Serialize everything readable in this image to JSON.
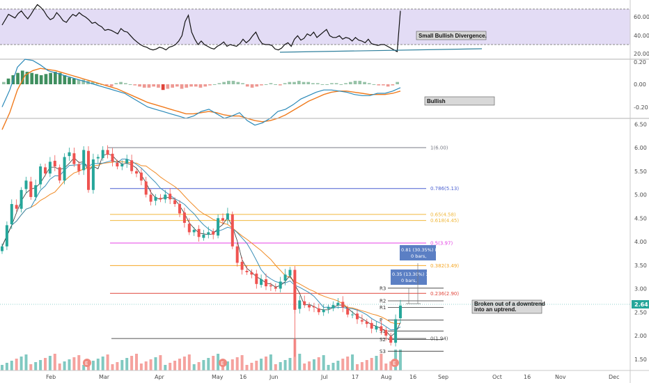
{
  "chart_data": [
    {
      "type": "line",
      "panel": "rsi",
      "yaxis_ticks": [
        "60.00",
        "40.00",
        "20.00"
      ],
      "overbought_level": 70,
      "oversold_level": 30,
      "values": [
        52,
        58,
        64,
        62,
        60,
        65,
        68,
        63,
        59,
        64,
        70,
        75,
        72,
        68,
        62,
        58,
        60,
        66,
        62,
        57,
        55,
        60,
        64,
        62,
        66,
        63,
        61,
        58,
        54,
        55,
        52,
        50,
        46,
        47,
        46,
        44,
        42,
        48,
        45,
        44,
        40,
        36,
        33,
        30,
        28,
        27,
        25,
        24,
        25,
        27,
        26,
        24,
        27,
        28,
        30,
        34,
        40,
        56,
        63,
        44,
        36,
        30,
        34,
        30,
        28,
        26,
        25,
        28,
        30,
        33,
        28,
        30,
        29,
        28,
        31,
        36,
        32,
        35,
        40,
        44,
        36,
        31,
        30,
        30,
        29,
        25,
        24,
        26,
        30,
        32,
        28,
        36,
        40,
        35,
        37,
        42,
        40,
        44,
        38,
        41,
        44,
        47,
        40,
        38,
        38,
        40,
        36,
        38,
        37,
        34,
        38,
        35,
        34,
        32,
        36,
        31,
        30,
        29,
        30,
        30,
        28,
        26,
        24,
        22,
        68
      ],
      "annotation": "Small Bullish Divergence.",
      "color": "#111111",
      "band_color": "#e3dcf5",
      "divergence_line_color": "#2f7f9c"
    },
    {
      "type": "bar",
      "panel": "macd",
      "yaxis_ticks": [
        "0.20",
        "0.00",
        "-0.20"
      ],
      "histogram": [
        0.02,
        0.05,
        0.08,
        0.1,
        0.12,
        0.11,
        0.1,
        0.09,
        0.08,
        0.09,
        0.1,
        0.11,
        0.1,
        0.08,
        0.06,
        0.05,
        0.04,
        0.04,
        0.03,
        0.02,
        0.01,
        0.0,
        -0.01,
        -0.02,
        0.01,
        0.02,
        0.01,
        0.0,
        -0.01,
        -0.02,
        -0.03,
        -0.03,
        -0.02,
        -0.03,
        -0.05,
        -0.04,
        -0.03,
        -0.02,
        -0.04,
        -0.03,
        -0.02,
        -0.02,
        -0.03,
        -0.02,
        -0.01,
        0.0,
        0.01,
        0.02,
        0.03,
        0.03,
        0.02,
        0.01,
        -0.02,
        -0.03,
        -0.02,
        -0.01,
        0.0,
        0.01,
        0.0,
        -0.01,
        0.01,
        0.02,
        0.02,
        0.03,
        0.02,
        0.02,
        0.01,
        0.01,
        0.0,
        0.0,
        0.01,
        0.01,
        0.0,
        0.01,
        0.02,
        0.03,
        0.03,
        0.02,
        0.01,
        0.0,
        -0.01,
        -0.01,
        -0.02,
        -0.01,
        0.02
      ],
      "macd_line": [
        -0.2,
        -0.05,
        0.15,
        0.22,
        0.21,
        0.17,
        0.12,
        0.1,
        0.08,
        0.06,
        0.04,
        0.02,
        0.0,
        -0.02,
        -0.04,
        -0.06,
        -0.08,
        -0.12,
        -0.16,
        -0.2,
        -0.22,
        -0.24,
        -0.26,
        -0.28,
        -0.3,
        -0.28,
        -0.24,
        -0.22,
        -0.26,
        -0.3,
        -0.28,
        -0.25,
        -0.32,
        -0.36,
        -0.34,
        -0.3,
        -0.24,
        -0.22,
        -0.18,
        -0.13,
        -0.1,
        -0.07,
        -0.05,
        -0.05,
        -0.06,
        -0.07,
        -0.09,
        -0.1,
        -0.1,
        -0.08,
        -0.08,
        -0.06,
        -0.03
      ],
      "signal_line": [
        -0.4,
        -0.25,
        -0.05,
        0.08,
        0.12,
        0.14,
        0.13,
        0.12,
        0.1,
        0.08,
        0.06,
        0.04,
        0.02,
        0.0,
        -0.02,
        -0.04,
        -0.07,
        -0.1,
        -0.13,
        -0.16,
        -0.18,
        -0.2,
        -0.22,
        -0.24,
        -0.26,
        -0.26,
        -0.25,
        -0.24,
        -0.25,
        -0.27,
        -0.28,
        -0.28,
        -0.3,
        -0.32,
        -0.33,
        -0.32,
        -0.3,
        -0.27,
        -0.23,
        -0.19,
        -0.15,
        -0.12,
        -0.09,
        -0.07,
        -0.06,
        -0.06,
        -0.07,
        -0.08,
        -0.09,
        -0.09,
        -0.09,
        -0.08,
        -0.06
      ],
      "annotation": "Bullish",
      "macd_color": "#2a89b8",
      "signal_color": "#f07a1c",
      "positive_color": "#3f8f5f",
      "negative_color": "#e0453a"
    },
    {
      "type": "candlestick",
      "panel": "price",
      "yaxis_ticks": [
        "6.50",
        "6.00",
        "5.50",
        "5.00",
        "4.50",
        "4.00",
        "3.50",
        "3.00",
        "2.50",
        "2.00",
        "1.50"
      ],
      "xaxis_ticks": [
        "Feb",
        "Mar",
        "Apr",
        "May",
        "16",
        "Jun",
        "Jul",
        "17",
        "Aug",
        "16",
        "Sep",
        "Oct",
        "16",
        "Nov",
        "Dec"
      ],
      "close_series": [
        3.9,
        4.35,
        4.8,
        4.7,
        5.1,
        5.3,
        4.95,
        5.2,
        5.6,
        5.45,
        5.7,
        5.6,
        5.3,
        5.8,
        5.9,
        5.65,
        5.5,
        5.95,
        5.1,
        5.75,
        5.8,
        5.95,
        5.85,
        5.7,
        5.6,
        5.65,
        5.75,
        5.5,
        5.45,
        5.3,
        5.0,
        4.85,
        4.95,
        4.9,
        5.0,
        4.9,
        4.8,
        4.6,
        4.4,
        4.2,
        4.25,
        4.1,
        4.15,
        4.2,
        4.15,
        4.5,
        4.45,
        4.6,
        3.9,
        3.55,
        3.4,
        3.35,
        3.3,
        3.1,
        3.2,
        3.05,
        3.05,
        3.0,
        3.15,
        3.3,
        3.4,
        2.55,
        2.75,
        2.65,
        2.6,
        2.6,
        2.5,
        2.55,
        2.6,
        2.65,
        2.7,
        2.6,
        2.45,
        2.45,
        2.35,
        2.3,
        2.25,
        2.15,
        2.2,
        2.1,
        2.0,
        1.85,
        2.35,
        2.64
      ],
      "fib_levels": [
        {
          "label": "1(6.00)",
          "value": 6.0,
          "color": "#787b86"
        },
        {
          "label": "0.786(5.13)",
          "value": 5.13,
          "color": "#4a5fd0"
        },
        {
          "label": "0.65(4.58)",
          "value": 4.58,
          "color": "#f0b83c"
        },
        {
          "label": "0.618(4.45)",
          "value": 4.45,
          "color": "#f0b83c"
        },
        {
          "label": "0.5(3.97)",
          "value": 3.97,
          "color": "#e442e4"
        },
        {
          "label": "0.382(3.49)",
          "value": 3.49,
          "color": "#f5a623"
        },
        {
          "label": "0.236(2.90)",
          "value": 2.9,
          "color": "#e0453a"
        },
        {
          "label": "0(1.94)",
          "value": 1.94,
          "color": "#555555"
        }
      ],
      "pivot_levels": [
        {
          "label": "R3",
          "value": 3.01
        },
        {
          "label": "R2",
          "value": 2.74
        },
        {
          "label": "R1",
          "value": 2.6
        },
        {
          "label": "P",
          "value": 2.33
        },
        {
          "label": "S1",
          "value": 2.1
        },
        {
          "label": "S2",
          "value": 1.92
        },
        {
          "label": "S3",
          "value": 1.67
        }
      ],
      "measure_labels": [
        {
          "line1": "0.81 (30.35%) 81",
          "line2": "0 bars,"
        },
        {
          "line1": "0.35 (13.30%) 35",
          "line2": "0 bars,"
        }
      ],
      "annotation_line1": "Broken out of a downtrend",
      "annotation_line2": "into an uptrend.",
      "last_price": "2.64",
      "earnings_marker": "E",
      "up_color": "#26a69a",
      "down_color": "#ef5350"
    }
  ]
}
